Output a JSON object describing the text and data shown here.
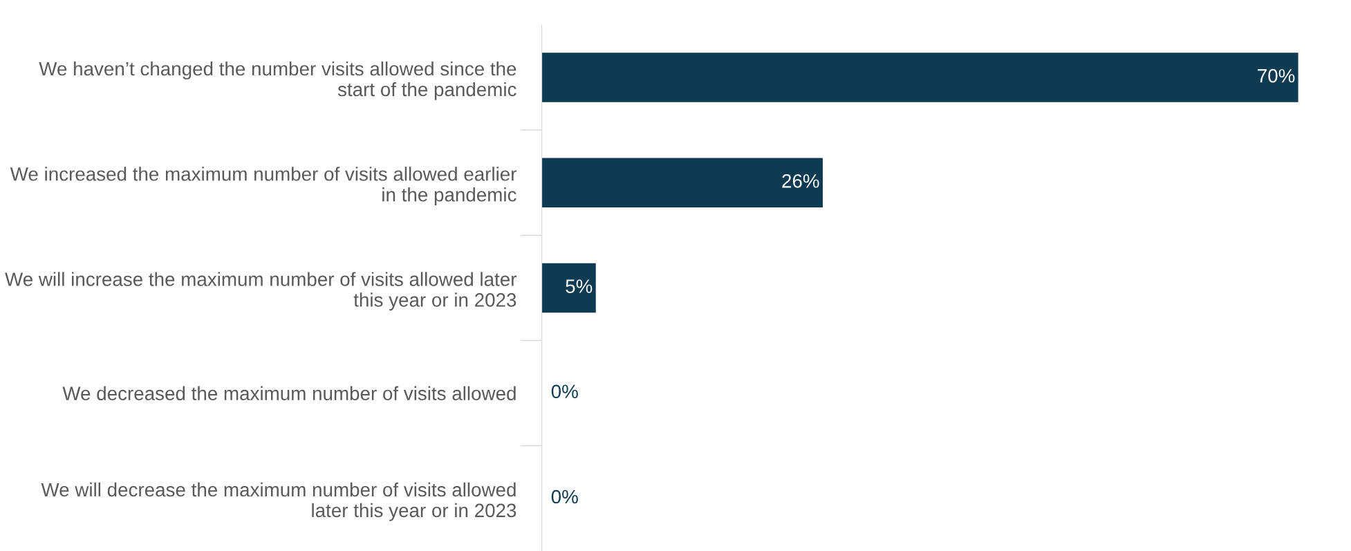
{
  "chart_data": {
    "type": "bar",
    "orientation": "horizontal",
    "categories": [
      "We haven’t changed the number visits allowed since the start of the pandemic",
      "We increased the maximum number of visits allowed earlier in the pandemic",
      "We will increase the maximum number of visits allowed later this year or in 2023",
      "We decreased the maximum number of visits allowed",
      "We will decrease the maximum number of visits allowed later this year or in 2023"
    ],
    "values": [
      70,
      26,
      5,
      0,
      0
    ],
    "value_labels": [
      "70%",
      "26%",
      "5%",
      "0%",
      "0%"
    ],
    "color": "#0e3a52",
    "xlim": [
      0,
      70
    ],
    "tick_labels": "y"
  }
}
